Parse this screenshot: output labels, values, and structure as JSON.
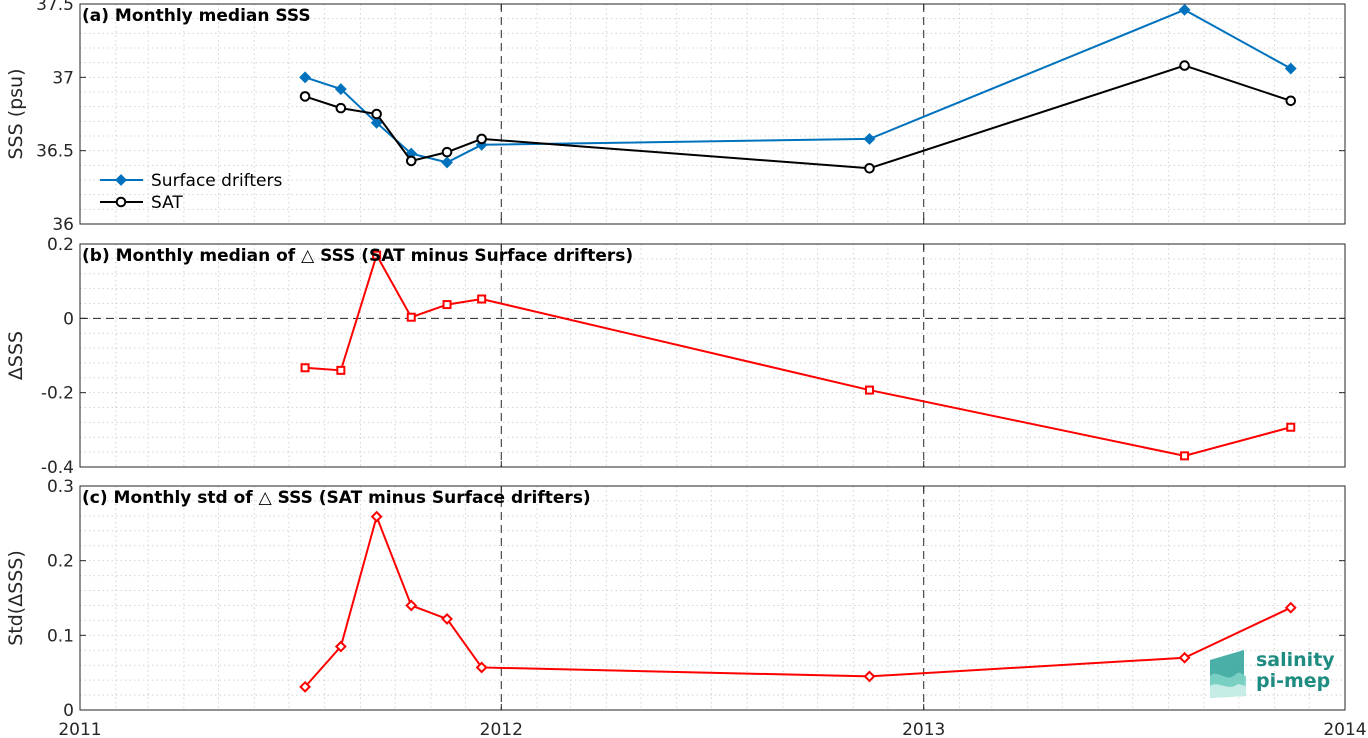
{
  "panels": [
    {
      "title": "(a) Monthly median SSS",
      "ylabel": "SSS (psu)",
      "ylim": [
        36,
        37.5
      ],
      "yticks": [
        36,
        36.5,
        37,
        37.5
      ],
      "yticklabels": [
        "36",
        "36.5",
        "37",
        "37.5"
      ]
    },
    {
      "title": "(b) Monthly median of △ SSS (SAT minus Surface drifters)",
      "ylabel": "ΔSSS",
      "ylim": [
        -0.4,
        0.2
      ],
      "yticks": [
        -0.4,
        -0.2,
        0,
        0.2
      ],
      "yticklabels": [
        "-0.4",
        "-0.2",
        "0",
        "0.2"
      ]
    },
    {
      "title": "(c) Monthly std of △ SSS (SAT minus Surface drifters)",
      "ylabel": "Std(ΔSSS)",
      "ylim": [
        0,
        0.3
      ],
      "yticks": [
        0,
        0.1,
        0.2,
        0.3
      ],
      "yticklabels": [
        "0",
        "0.1",
        "0.2",
        "0.3"
      ]
    }
  ],
  "xaxis": {
    "xlim": [
      "2011-01-01",
      "2014-01-01"
    ],
    "ticks": [
      "2011-01-01",
      "2012-01-01",
      "2013-01-01",
      "2014-01-01"
    ],
    "ticklabels": [
      "2011",
      "2012",
      "2013",
      "2014"
    ],
    "dashed_lines": [
      "2012-01-01",
      "2013-01-01"
    ]
  },
  "legend": {
    "location": "lower-left of panel (a)",
    "entries": [
      "Surface drifters",
      "SAT"
    ]
  },
  "logo": {
    "line1": "salinity",
    "line2": "pi-mep"
  },
  "colors": {
    "drifters": "#0072bd",
    "sat": "#000000",
    "delta": "#ff0000",
    "logo": "#1f8c82"
  },
  "chart_data": [
    {
      "type": "line",
      "title": "(a) Monthly median SSS",
      "ylabel": "SSS (psu)",
      "ylim": [
        36,
        37.5
      ],
      "grid": true,
      "x": [
        "2011-07-15",
        "2011-08-15",
        "2011-09-15",
        "2011-10-15",
        "2011-11-15",
        "2011-12-15",
        "2012-11-15",
        "2013-08-15",
        "2013-11-15"
      ],
      "series": [
        {
          "name": "Surface drifters",
          "marker": "diamond",
          "values": [
            37.0,
            36.92,
            36.69,
            36.48,
            36.42,
            36.54,
            36.58,
            37.46,
            37.06
          ]
        },
        {
          "name": "SAT",
          "marker": "circle",
          "values": [
            36.87,
            36.79,
            36.75,
            36.43,
            36.49,
            36.58,
            36.38,
            37.08,
            36.84
          ]
        }
      ]
    },
    {
      "type": "line",
      "title": "(b) Monthly median of △ SSS (SAT minus Surface drifters)",
      "ylabel": "ΔSSS",
      "ylim": [
        -0.4,
        0.2
      ],
      "grid": true,
      "x": [
        "2011-07-15",
        "2011-08-15",
        "2011-09-15",
        "2011-10-15",
        "2011-11-15",
        "2011-12-15",
        "2012-11-15",
        "2013-08-15",
        "2013-11-15"
      ],
      "series": [
        {
          "marker": "square",
          "values": [
            -0.133,
            -0.14,
            0.17,
            0.003,
            0.037,
            0.052,
            -0.193,
            -0.37,
            -0.293
          ]
        }
      ]
    },
    {
      "type": "line",
      "title": "(c) Monthly std of △ SSS (SAT minus Surface drifters)",
      "ylabel": "Std(ΔSSS)",
      "ylim": [
        0,
        0.3
      ],
      "grid": true,
      "x": [
        "2011-07-15",
        "2011-08-15",
        "2011-09-15",
        "2011-10-15",
        "2011-11-15",
        "2011-12-15",
        "2012-11-15",
        "2013-08-15",
        "2013-11-15"
      ],
      "series": [
        {
          "marker": "diamond",
          "values": [
            0.031,
            0.085,
            0.259,
            0.14,
            0.122,
            0.057,
            0.045,
            0.07,
            0.137
          ]
        }
      ]
    }
  ]
}
